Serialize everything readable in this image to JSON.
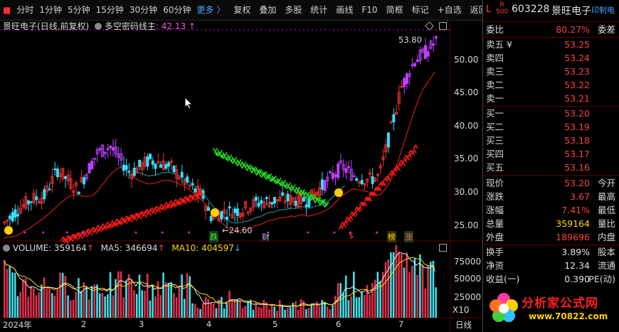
{
  "toolbar": {
    "items": [
      "分时",
      "1分钟",
      "5分钟",
      "15分钟",
      "30分钟",
      "60分钟"
    ],
    "more": "更多 〉",
    "items2": [
      "复权",
      "叠加",
      "多股",
      "统计",
      "画线",
      "F10",
      "简框",
      "标记",
      "+自选",
      "返回"
    ]
  },
  "chart_header": {
    "stock": "景旺电子",
    "mode": "(日线,前复权)",
    "indicator": "多空密码线主",
    "indicator_value": ": 42.13",
    "arrows": "↑"
  },
  "price_axis": [
    "50.00",
    "45.00",
    "40.00",
    "35.00",
    "30.00",
    "25.00"
  ],
  "volume_axis": [
    "75000",
    "50000",
    "25000",
    "X10"
  ],
  "date_axis": [
    "2024年",
    "2",
    "3",
    "4",
    "5",
    "6",
    "7",
    "日线"
  ],
  "annotations": {
    "high": "53.80",
    "low": "←24.60",
    "tag1": "跌",
    "tag2": "财",
    "tag3": "$",
    "tag4": "榜",
    "tag5": "涨"
  },
  "volume_header": {
    "vol": "VOLUME: 359164",
    "ma5": "MA5: 346694",
    "ma10": "MA10: 404597"
  },
  "quote": {
    "flag": "L",
    "flag2": "R\n500",
    "code": "603228",
    "name": "景旺电子",
    "print": "印制电",
    "webi": {
      "label": "委比",
      "value": "80.27%",
      "right": "委差"
    },
    "asks": [
      {
        "label": "卖五 ¥",
        "price": "53.25"
      },
      {
        "label": "卖四",
        "price": "53.24"
      },
      {
        "label": "卖三",
        "price": "53.23"
      },
      {
        "label": "卖二",
        "price": "53.22"
      },
      {
        "label": "卖一",
        "price": "53.21"
      }
    ],
    "bids": [
      {
        "label": "买一",
        "price": "53.20"
      },
      {
        "label": "买二",
        "price": "53.19"
      },
      {
        "label": "买三",
        "price": "53.18"
      },
      {
        "label": "买四",
        "price": "53.17"
      },
      {
        "label": "买五",
        "price": "53.16"
      }
    ],
    "stats": [
      {
        "label": "现价",
        "value": "53.20",
        "right": "今开",
        "color": "red"
      },
      {
        "label": "涨跌",
        "value": "3.67",
        "right": "最高",
        "color": "red"
      },
      {
        "label": "涨幅",
        "value": "7.41%",
        "right": "最低",
        "color": "red"
      },
      {
        "label": "总量",
        "value": "359164",
        "right": "量比",
        "color": "yel"
      },
      {
        "label": "外盘",
        "value": "189696",
        "right": "内盘",
        "color": "red"
      }
    ],
    "stats2": [
      {
        "label": "换手",
        "value": "3.89%",
        "right": "股本",
        "color": "wht"
      },
      {
        "label": "净资",
        "value": "12.34",
        "right": "流通",
        "color": "wht"
      },
      {
        "label": "收益(一)",
        "value": "0.390",
        "right": "PE(动)",
        "color": "wht"
      }
    ]
  },
  "watermark": {
    "title": "分析家公式网",
    "url": "www.70822.com"
  }
}
